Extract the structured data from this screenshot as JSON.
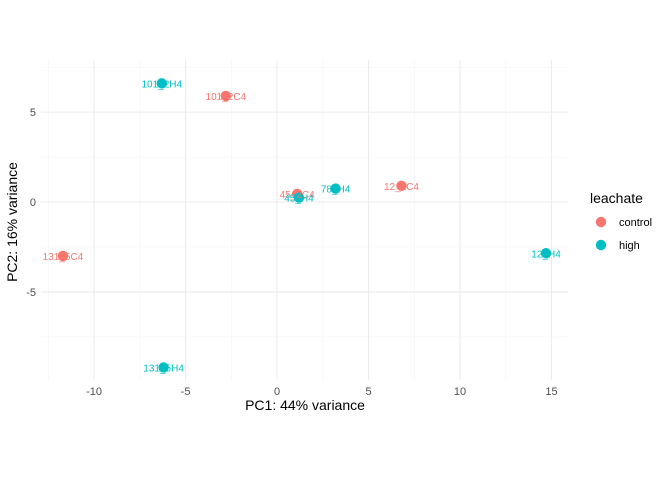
{
  "chart_data": {
    "type": "scatter",
    "xlabel": "PC1: 44% variance",
    "ylabel": "PC2: 16% variance",
    "xlim": [
      -12.9,
      15.9
    ],
    "ylim": [
      -9.9,
      7.9
    ],
    "x_ticks": [
      -10,
      -5,
      0,
      5,
      10,
      15
    ],
    "x_tick_labels": [
      "-10",
      "-5",
      "0",
      "5",
      "10",
      "15"
    ],
    "y_ticks": [
      -5,
      0,
      5
    ],
    "y_tick_labels": [
      "-5",
      "0",
      "5"
    ],
    "grid": true,
    "legend": {
      "title": "leachate",
      "position": "right",
      "entries": [
        {
          "label": "control",
          "color": "#F8766D"
        },
        {
          "label": "high",
          "color": "#00BFC4"
        }
      ]
    },
    "series": [
      {
        "name": "control",
        "color": "#F8766D",
        "points": [
          {
            "x": -2.8,
            "y": 5.9,
            "label": "101_2C4"
          },
          {
            "x": 6.8,
            "y": 0.9,
            "label": "12_2C4"
          },
          {
            "x": 1.1,
            "y": 0.45,
            "label": "45_2C4"
          },
          {
            "x": -11.7,
            "y": -3.0,
            "label": "131_5C4"
          }
        ]
      },
      {
        "name": "high",
        "color": "#00BFC4",
        "points": [
          {
            "x": -6.3,
            "y": 6.6,
            "label": "101_2H4"
          },
          {
            "x": 3.2,
            "y": 0.75,
            "label": "78_H4"
          },
          {
            "x": 1.2,
            "y": 0.25,
            "label": "45_H4"
          },
          {
            "x": 14.7,
            "y": -2.85,
            "label": "12_H4"
          },
          {
            "x": -6.2,
            "y": -9.2,
            "label": "131_5H4"
          }
        ]
      }
    ]
  }
}
